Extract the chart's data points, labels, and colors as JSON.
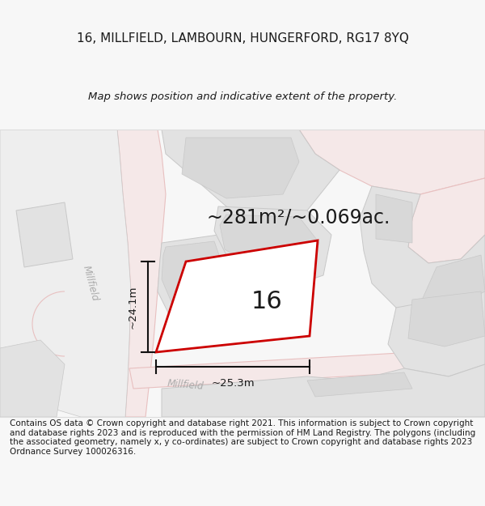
{
  "title_line1": "16, MILLFIELD, LAMBOURN, HUNGERFORD, RG17 8YQ",
  "title_line2": "Map shows position and indicative extent of the property.",
  "area_text": "~281m²/~0.069ac.",
  "number_label": "16",
  "dim_vertical": "~24.1m",
  "dim_horizontal": "~25.3m",
  "road_label_1": "Millfield",
  "road_label_2": "Millfield",
  "footer_text": "Contains OS data © Crown copyright and database right 2021. This information is subject to Crown copyright and database rights 2023 and is reproduced with the permission of HM Land Registry. The polygons (including the associated geometry, namely x, y co-ordinates) are subject to Crown copyright and database rights 2023 Ordnance Survey 100026316.",
  "bg_color": "#f7f7f7",
  "map_bg": "#ffffff",
  "block_fill": "#e2e2e2",
  "block_edge": "#c8c8c8",
  "road_fill": "#f5e8e8",
  "road_edge": "#e8c0c0",
  "plot_fill": "#ffffff",
  "plot_stroke": "#cc0000",
  "dim_color": "#111111",
  "text_color": "#1a1a1a",
  "road_text_color": "#aaaaaa"
}
